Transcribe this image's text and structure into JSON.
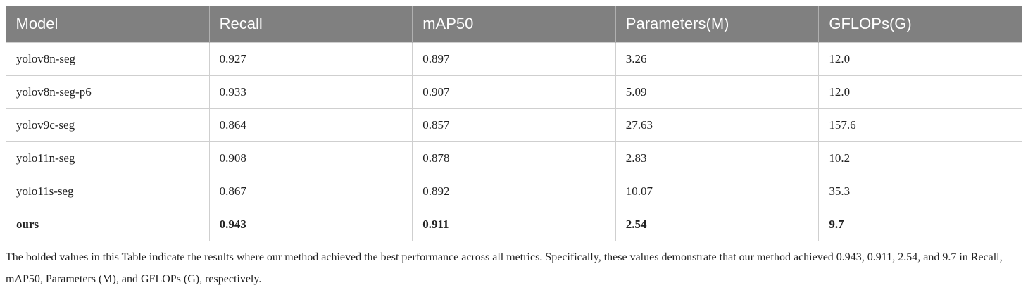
{
  "table": {
    "header": [
      "Model",
      "Recall",
      "mAP50",
      "Parameters(M)",
      "GFLOPs(G)"
    ],
    "rows": [
      [
        "yolov8n-seg",
        "0.927",
        "0.897",
        "3.26",
        "12.0"
      ],
      [
        "yolov8n-seg-p6",
        "0.933",
        "0.907",
        "5.09",
        "12.0"
      ],
      [
        "yolov9c-seg",
        "0.864",
        "0.857",
        "27.63",
        "157.6"
      ],
      [
        "yolo11n-seg",
        "0.908",
        "0.878",
        "2.83",
        "10.2"
      ],
      [
        "yolo11s-seg",
        "0.867",
        "0.892",
        "10.07",
        "35.3"
      ],
      [
        "ours",
        "0.943",
        "0.911",
        "2.54",
        "9.7"
      ]
    ]
  },
  "footnote": "The bolded values in this Table indicate the results where our method achieved the best performance across all metrics. Specifically, these values demonstrate that our method achieved 0.943, 0.911, 2.54, and 9.7 in Recall, mAP50, Parameters (M), and GFLOPs (G), respectively."
}
